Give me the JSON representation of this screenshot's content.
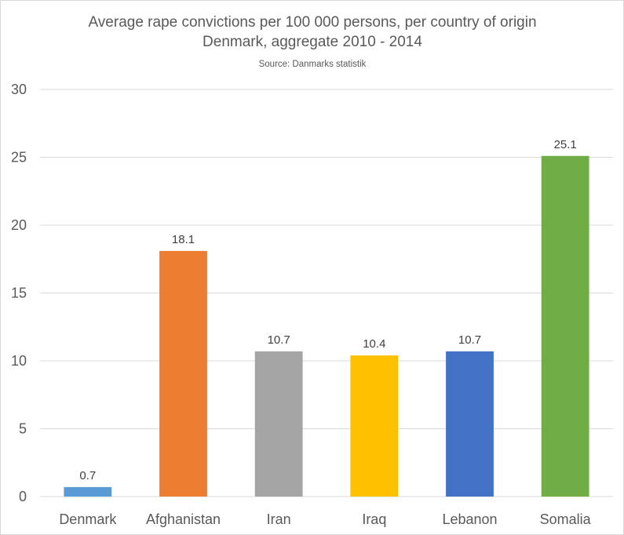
{
  "chart_data": {
    "type": "bar",
    "title_lines": [
      "Average rape convictions per 100 000 persons, per country of origin",
      "Denmark, aggregate 2010 - 2014"
    ],
    "subtitle": "Source: Danmarks statistik",
    "categories": [
      "Denmark",
      "Afghanistan",
      "Iran",
      "Iraq",
      "Lebanon",
      "Somalia"
    ],
    "values": [
      0.7,
      18.1,
      10.7,
      10.4,
      10.7,
      25.1
    ],
    "value_labels": [
      "0.7",
      "18.1",
      "10.7",
      "10.4",
      "10.7",
      "25.1"
    ],
    "colors": [
      "#5b9bd5",
      "#ed7d31",
      "#a5a5a5",
      "#ffc000",
      "#4472c4",
      "#70ad47"
    ],
    "yticks": [
      0,
      5,
      10,
      15,
      20,
      25,
      30
    ],
    "ylim": [
      0,
      30
    ],
    "xlabel": "",
    "ylabel": "",
    "grid": true,
    "legend": "none"
  }
}
